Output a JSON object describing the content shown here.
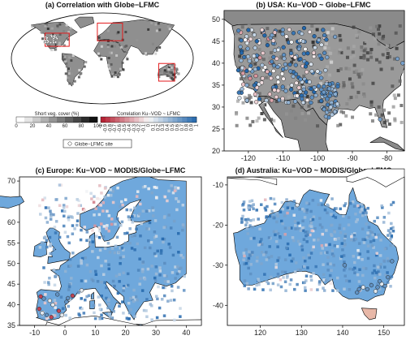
{
  "palette": {
    "gray_light": "#e6e6e6",
    "gray_dark": "#1a1a1a",
    "red": "#c0392b",
    "blue": "#2166ac",
    "white": "#f7f7f7",
    "land_blue": "#6fa8dc",
    "box_red": "#e31a1c"
  },
  "chart_data": [
    {
      "id": "a",
      "type": "map",
      "title": "(a) Correlation with Globe−LFMC",
      "inset_regions": [
        "USA",
        "Europe",
        "Australia"
      ],
      "legend": {
        "veg_title": "Short veg. cover (%)",
        "veg_ticks": [
          "0",
          "20",
          "40",
          "60",
          "80",
          "100"
        ],
        "corr_title": "Correlation Ku−VOD ~ LFMC",
        "corr_ticks": [
          "-1",
          "-0.9",
          "-0.8",
          "-0.7",
          "-0.6",
          "-0.5",
          "-0.4",
          "-0.3",
          "-0.2",
          "-0.1",
          "0",
          "0.1",
          "0.2",
          "0.3",
          "0.4",
          "0.5",
          "0.6",
          "0.7",
          "0.8",
          "0.9",
          "1"
        ],
        "site_label": "Globe−LFMC site"
      }
    },
    {
      "id": "b",
      "type": "map",
      "title": "(b) USA: Ku−VOD ~ Globe−LFMC",
      "xlim": [
        -127,
        -75
      ],
      "ylim": [
        20,
        52
      ],
      "xticks": [
        "-120",
        "-110",
        "-100",
        "-90",
        "-80"
      ],
      "yticks": [
        "20",
        "25",
        "30",
        "35",
        "40",
        "45",
        "50"
      ]
    },
    {
      "id": "c",
      "type": "map",
      "title": "(c) Europe: Ku−VOD ~ MODIS/Globe−LFMC",
      "xlim": [
        -15,
        45
      ],
      "ylim": [
        35,
        71
      ],
      "xticks": [
        "-10",
        "0",
        "10",
        "20",
        "30",
        "40"
      ],
      "yticks": [
        "35",
        "40",
        "45",
        "50",
        "55",
        "60",
        "65",
        "70"
      ]
    },
    {
      "id": "d",
      "type": "map",
      "title": "(d) Australia: Ku−VOD ~ MODIS/Globe−LFMC",
      "xlim": [
        112,
        155
      ],
      "ylim": [
        -45,
        -8
      ],
      "xticks": [
        "120",
        "130",
        "140",
        "150"
      ],
      "yticks": [
        "-40",
        "-30",
        "-20",
        "-10"
      ]
    }
  ]
}
